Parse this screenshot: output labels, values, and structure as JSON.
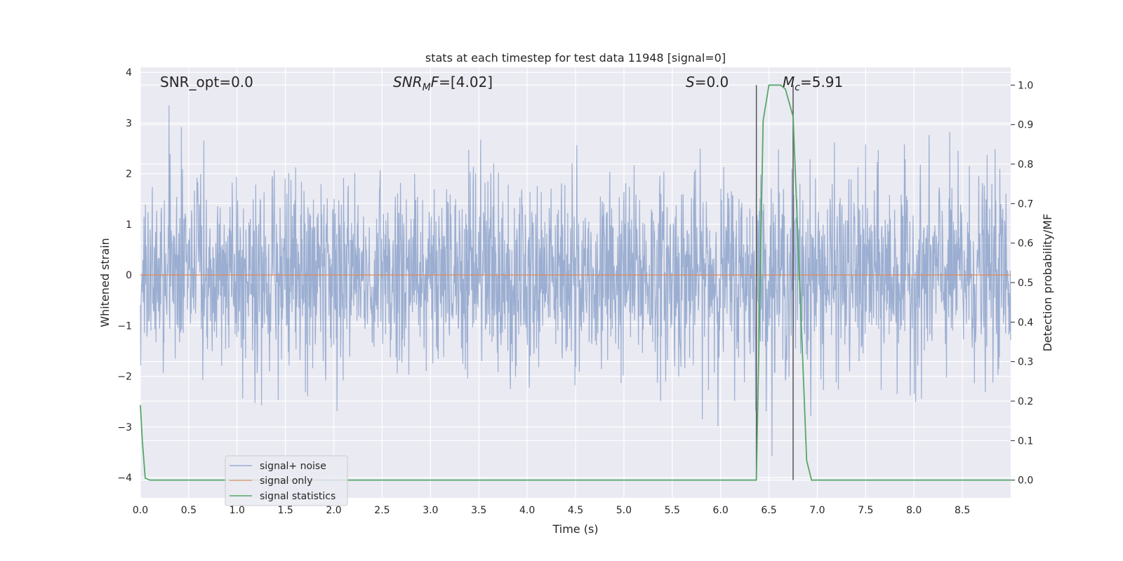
{
  "chart_data": {
    "type": "line",
    "title": "stats at each timestep for test data 11948 [signal=0]",
    "xlabel": "Time (s)",
    "ylabel": "Whitened strain",
    "ylabel_right": "Detection probability/MF",
    "xlim": [
      0,
      9.0
    ],
    "ylim": [
      -4.4,
      4.1
    ],
    "ylim_right": [
      -0.045,
      1.045
    ],
    "x_ticks": [
      "0.0",
      "0.5",
      "1.0",
      "1.5",
      "2.0",
      "2.5",
      "3.0",
      "3.5",
      "4.0",
      "4.5",
      "5.0",
      "5.5",
      "6.0",
      "6.5",
      "7.0",
      "7.5",
      "8.0",
      "8.5"
    ],
    "y_ticks": [
      "4",
      "3",
      "2",
      "1",
      "0",
      "−1",
      "−2",
      "−3",
      "−4"
    ],
    "y_ticks_right": [
      "1.0",
      "0.9",
      "0.8",
      "0.7",
      "0.6",
      "0.5",
      "0.4",
      "0.3",
      "0.2",
      "0.1",
      "0.0"
    ],
    "grid": true,
    "legend_position": "lower-left",
    "annotations": {
      "snr_opt": "SNR_opt=0.0",
      "snr_mf_main": "SNR",
      "snr_mf_sub": "M",
      "snr_mf_rest": "F=[4.02]",
      "s_main": "S",
      "s_rest": "=0.0",
      "mc_main": "M",
      "mc_sub": "c",
      "mc_rest": "=5.91"
    },
    "vertical_lines": [
      6.37,
      6.75
    ],
    "series": [
      {
        "name": "signal+ noise",
        "color": "#4c72b0",
        "description_of_values": "whitened strain noise, approx Gaussian with std 1, amplitude range about -4 to 4 across 0-9 s",
        "t_start": 0.0,
        "t_end": 9.0,
        "amplitude_std": 1.0
      },
      {
        "name": "signal only",
        "color": "#dd8452",
        "x": [
          0.0,
          9.0
        ],
        "y": [
          0.0,
          0.0
        ]
      },
      {
        "name": "signal statistics",
        "color": "#55a868",
        "axis": "right",
        "x": [
          0.0,
          0.02,
          0.05,
          0.1,
          6.37,
          6.44,
          6.5,
          6.62,
          6.67,
          6.75,
          6.89,
          6.94,
          9.0
        ],
        "y": [
          0.19,
          0.1,
          0.005,
          0.0,
          0.0,
          0.91,
          1.0,
          1.0,
          0.99,
          0.92,
          0.05,
          0.0,
          0.0
        ]
      }
    ]
  }
}
